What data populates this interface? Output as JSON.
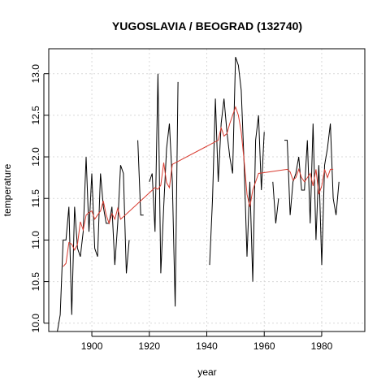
{
  "chart_data": {
    "type": "line",
    "title": "YUGOSLAVIA / BEOGRAD (132740)",
    "xlabel": "year",
    "ylabel": "temperature",
    "xlim": [
      1885,
      1995
    ],
    "ylim": [
      9.9,
      13.3
    ],
    "x_ticks": [
      1900,
      1920,
      1940,
      1960,
      1980
    ],
    "y_ticks": [
      10.0,
      10.5,
      11.0,
      11.5,
      12.0,
      12.5,
      13.0
    ],
    "y_tick_labels": [
      "10.0",
      "10.5",
      "11.0",
      "11.5",
      "12.0",
      "12.5",
      "13.0"
    ],
    "grid": true,
    "series": [
      {
        "color": "#000000",
        "x": [
          1888,
          1889,
          1890,
          1891,
          1892,
          1893,
          1894,
          1895,
          1896,
          1897,
          1898,
          1899,
          1900,
          1901,
          1902,
          1903,
          1904,
          1905,
          1906,
          1907,
          1908,
          1909,
          1910,
          1911,
          1912,
          1913,
          1914,
          1915,
          1916,
          1917,
          1918,
          1919,
          1920,
          1921,
          1922,
          1923,
          1924,
          1925,
          1926,
          1927,
          1928,
          1929,
          1930,
          1931,
          1932,
          1933,
          1934,
          1935,
          1936,
          1937,
          1938,
          1939,
          1940,
          1941,
          1942,
          1943,
          1944,
          1945,
          1946,
          1947,
          1948,
          1949,
          1950,
          1951,
          1952,
          1953,
          1954,
          1955,
          1956,
          1957,
          1958,
          1959,
          1960,
          1961,
          1962,
          1963,
          1964,
          1965,
          1966,
          1967,
          1968,
          1969,
          1970,
          1971,
          1972,
          1973,
          1974,
          1975,
          1976,
          1977,
          1978,
          1979,
          1980,
          1981,
          1982,
          1983,
          1984,
          1985,
          1986
        ],
        "y": [
          9.9,
          10.1,
          11.0,
          11.0,
          11.4,
          10.1,
          11.4,
          10.9,
          10.8,
          11.1,
          12.0,
          11.1,
          11.8,
          10.9,
          10.8,
          11.8,
          11.4,
          11.2,
          11.2,
          11.4,
          10.7,
          11.2,
          11.9,
          11.8,
          10.6,
          11.0,
          null,
          null,
          12.2,
          11.3,
          11.3,
          null,
          11.7,
          11.8,
          11.1,
          13.0,
          10.6,
          11.4,
          12.1,
          12.4,
          11.7,
          10.2,
          12.9,
          null,
          null,
          null,
          null,
          null,
          null,
          null,
          null,
          null,
          null,
          10.7,
          11.5,
          12.7,
          11.7,
          12.4,
          12.7,
          12.3,
          12.0,
          11.8,
          13.2,
          13.1,
          12.8,
          11.9,
          10.8,
          11.7,
          10.5,
          12.2,
          12.5,
          11.6,
          12.3,
          null,
          null,
          11.7,
          11.2,
          11.5,
          null,
          12.2,
          12.2,
          11.3,
          11.7,
          11.8,
          12.0,
          11.6,
          11.6,
          12.2,
          11.2,
          12.4,
          11.0,
          11.9,
          10.7,
          11.9,
          12.1,
          12.4,
          11.5,
          11.3,
          11.7
        ]
      },
      {
        "color": "#d93b30",
        "x": [
          1890,
          1891,
          1892,
          1893,
          1894,
          1895,
          1896,
          1897,
          1898,
          1899,
          1900,
          1901,
          1902,
          1903,
          1904,
          1905,
          1906,
          1907,
          1908,
          1909,
          1910,
          1911,
          1922,
          1923,
          1924,
          1925,
          1926,
          1927,
          1928,
          1944,
          1945,
          1946,
          1947,
          1948,
          1949,
          1950,
          1951,
          1952,
          1953,
          1954,
          1955,
          1956,
          1957,
          1958,
          1968,
          1969,
          1970,
          1971,
          1972,
          1973,
          1974,
          1975,
          1976,
          1977,
          1978,
          1979,
          1980,
          1981,
          1982,
          1983,
          1984
        ],
        "y": [
          10.68,
          10.72,
          10.97,
          10.95,
          10.88,
          10.95,
          11.22,
          11.12,
          11.3,
          11.33,
          11.35,
          11.25,
          11.3,
          11.35,
          11.47,
          11.3,
          11.2,
          11.32,
          11.25,
          11.38,
          11.25,
          11.28,
          11.63,
          11.61,
          11.66,
          11.93,
          11.69,
          11.63,
          11.91,
          12.2,
          12.35,
          12.25,
          12.28,
          12.4,
          12.5,
          12.6,
          12.5,
          12.3,
          11.95,
          11.55,
          11.4,
          11.6,
          11.7,
          11.8,
          11.85,
          11.82,
          11.72,
          11.75,
          11.85,
          11.75,
          11.7,
          11.75,
          11.8,
          11.65,
          11.85,
          11.55,
          11.65,
          11.85,
          11.75,
          11.85,
          11.85
        ]
      }
    ]
  }
}
